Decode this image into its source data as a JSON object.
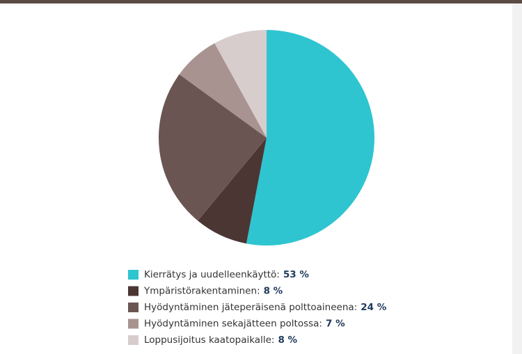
{
  "chart_data": {
    "type": "pie",
    "categories": [
      "Kierrätys ja uudelleenkäyttö:",
      "Ympäristörakentaminen:",
      "Hyödyntäminen jäteperäisenä polttoaineena:",
      "Hyödyntäminen sekajätteen poltossa:",
      "Loppusijoitus kaatopaikalle:"
    ],
    "values": [
      53,
      8,
      24,
      7,
      8
    ],
    "value_labels": [
      "53 %",
      "8 %",
      "24 %",
      "7 %",
      "8 %"
    ],
    "colors": [
      "#2ec5d1",
      "#4b3634",
      "#6b5553",
      "#a99391",
      "#d7cdcc"
    ]
  }
}
